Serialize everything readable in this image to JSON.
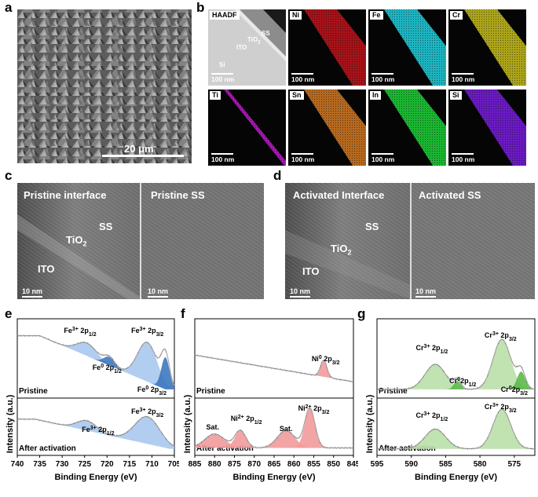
{
  "panel_labels": {
    "a": "a",
    "b": "b",
    "c": "c",
    "d": "d",
    "e": "e",
    "f": "f",
    "g": "g"
  },
  "panel_a": {
    "scalebar": "20 μm"
  },
  "panel_b": {
    "tiles": [
      {
        "tag": "HAADF",
        "scale": "100 nm",
        "color": "#777777"
      },
      {
        "tag": "Ni",
        "scale": "100 nm",
        "color": "#c0151c"
      },
      {
        "tag": "Fe",
        "scale": "100 nm",
        "color": "#22d1e0"
      },
      {
        "tag": "Cr",
        "scale": "100 nm",
        "color": "#c8c01e"
      },
      {
        "tag": "Ti",
        "scale": "100 nm",
        "color": "#c01ad0"
      },
      {
        "tag": "Sn",
        "scale": "100 nm",
        "color": "#d47a24"
      },
      {
        "tag": "In",
        "scale": "100 nm",
        "color": "#1ed43a"
      },
      {
        "tag": "Si",
        "scale": "100 nm",
        "color": "#7a1ee0"
      }
    ],
    "haadf_labels": {
      "ss": "SS",
      "tio2": "TiO",
      "tio2_sub": "2",
      "ito": "ITO",
      "si": "Si"
    }
  },
  "panel_c": {
    "left_title": "Pristine interface",
    "right_title": "Pristine SS",
    "ss": "SS",
    "tio2": "TiO",
    "tio2_sub": "2",
    "ito": "ITO",
    "scale_left": "10 nm",
    "scale_right": "10 nm"
  },
  "panel_d": {
    "left_title": "Activated Interface",
    "right_title": "Activated SS",
    "ss": "SS",
    "tio2": "TiO",
    "tio2_sub": "2",
    "ito": "ITO",
    "scale_left": "10 nm",
    "scale_right": "10 nm"
  },
  "xps": {
    "ylabel": "Intensity (a.u.)",
    "xlabel": "Binding Energy (eV)",
    "pristine": "Pristine",
    "after": "After  activation"
  },
  "chart_data": [
    {
      "type": "area",
      "panel": "e",
      "element": "Fe 2p",
      "x_range": [
        740,
        705
      ],
      "x_ticks": [
        740,
        735,
        730,
        725,
        720,
        715,
        710,
        705
      ],
      "ylabel": "Intensity (a.u.)",
      "xlabel": "Binding Energy (eV)",
      "annotations_pristine": [
        "Fe3+ 2p1/2",
        "Fe3+ 2p3/2",
        "Fe0 2p1/2",
        "Fe0 2p3/2"
      ],
      "annotations_after": [
        "Fe3+ 2p1/2",
        "Fe3+ 2p3/2"
      ],
      "fill_colors": {
        "Fe3+": "#a9c8ee",
        "Fe0": "#3d78c0"
      }
    },
    {
      "type": "area",
      "panel": "f",
      "element": "Ni 2p",
      "x_range": [
        885,
        845
      ],
      "x_ticks": [
        885,
        880,
        875,
        870,
        865,
        860,
        855,
        850,
        845
      ],
      "ylabel": "Intensity (a.u.)",
      "xlabel": "Binding Energy (eV)",
      "annotations_pristine": [
        "Ni0 2p3/2"
      ],
      "annotations_after": [
        "Sat.",
        "Ni2+ 2p1/2",
        "Sat.",
        "Ni2+ 2p3/2"
      ],
      "fill_colors": {
        "Ni2+": "#f29a9a",
        "Sat": "#f29a9a"
      }
    },
    {
      "type": "area",
      "panel": "g",
      "element": "Cr 2p",
      "x_range": [
        595,
        572
      ],
      "x_ticks": [
        595,
        590,
        585,
        580,
        575
      ],
      "ylabel": "Intensity (a.u.)",
      "xlabel": "Binding Energy (eV)",
      "annotations_pristine": [
        "Cr3+ 2p1/2",
        "Cr3+ 2p3/2",
        "Cr0 2p1/2",
        "Cr0 2p3/2"
      ],
      "annotations_after": [
        "Cr3+ 2p1/2",
        "Cr3+ 2p3/2"
      ],
      "fill_colors": {
        "Cr3+": "#b9e0a8",
        "Cr0": "#5bb84a"
      }
    }
  ]
}
